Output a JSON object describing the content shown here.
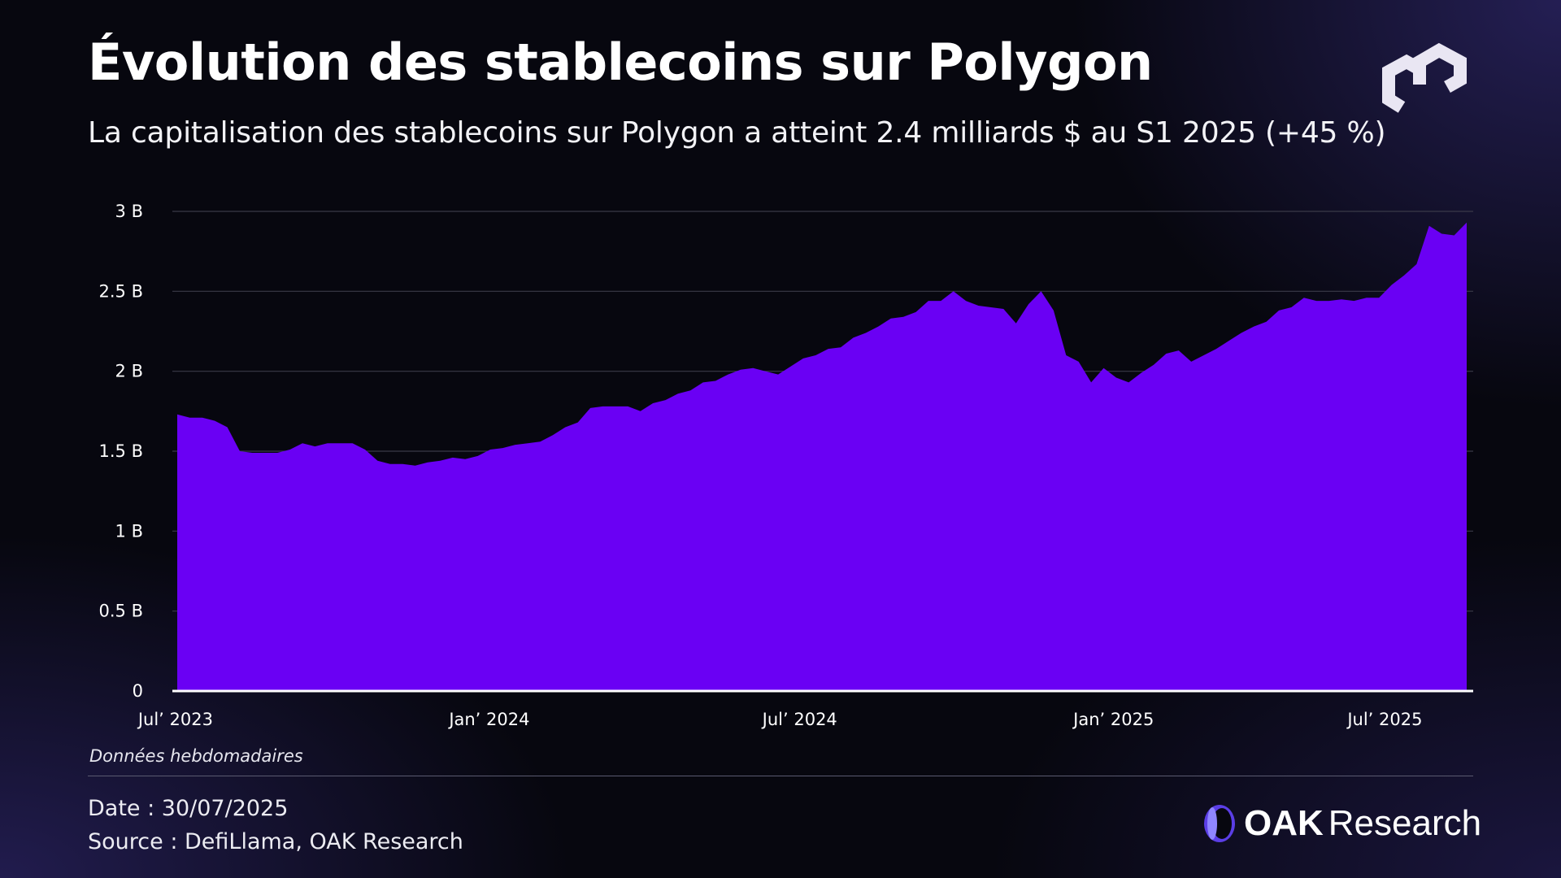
{
  "header": {
    "title": "Évolution des stablecoins sur Polygon",
    "subtitle": "La capitalisation des stablecoins sur Polygon a atteint 2.4 milliards $ au S1 2025 (+45 %)"
  },
  "footer": {
    "frequency_note": "Données hebdomadaires",
    "date": "Date : 30/07/2025",
    "source": "Source : DefiLlama, OAK Research",
    "brand_strong": "OAK",
    "brand_light": "Research"
  },
  "logos": {
    "top_right": "polygon-logo-icon",
    "footer": "oak-research-logo-icon"
  },
  "colors": {
    "area_fill": "#6a00f4",
    "background": "#07070f",
    "gridline": "#3a3a48",
    "baseline": "#ffffff"
  },
  "chart_data": {
    "type": "area",
    "title": "Évolution des stablecoins sur Polygon",
    "subtitle": "La capitalisation des stablecoins sur Polygon a atteint 2.4 milliards $ au S1 2025 (+45 %)",
    "x_unit": "week",
    "x_start": "2023-07-02",
    "x_end": "2025-07-27",
    "xlabel": "",
    "ylabel": "",
    "ylim": [
      0,
      3000000000
    ],
    "y_ticks": [
      {
        "value": 0,
        "label": "0"
      },
      {
        "value": 500000000,
        "label": "0.5 B"
      },
      {
        "value": 1000000000,
        "label": "1 B"
      },
      {
        "value": 1500000000,
        "label": "1.5 B"
      },
      {
        "value": 2000000000,
        "label": "2 B"
      },
      {
        "value": 2500000000,
        "label": "2.5 B"
      },
      {
        "value": 3000000000,
        "label": "3 B"
      }
    ],
    "x_ticks": [
      {
        "date": "2023-07-01",
        "label": "Jul’ 2023"
      },
      {
        "date": "2024-01-01",
        "label": "Jan’ 2024"
      },
      {
        "date": "2024-07-01",
        "label": "Jul’ 2024"
      },
      {
        "date": "2025-01-01",
        "label": "Jan’ 2025"
      },
      {
        "date": "2025-07-01",
        "label": "Jul’ 2025"
      }
    ],
    "grid": "horizontal",
    "legend": "none",
    "series": [
      {
        "values": [
          1.73,
          1.71,
          1.71,
          1.69,
          1.65,
          1.5,
          1.49,
          1.49,
          1.49,
          1.51,
          1.55,
          1.53,
          1.55,
          1.55,
          1.55,
          1.51,
          1.44,
          1.42,
          1.42,
          1.41,
          1.43,
          1.44,
          1.46,
          1.45,
          1.47,
          1.51,
          1.52,
          1.54,
          1.55,
          1.56,
          1.6,
          1.65,
          1.68,
          1.77,
          1.78,
          1.78,
          1.78,
          1.75,
          1.8,
          1.82,
          1.86,
          1.88,
          1.93,
          1.94,
          1.98,
          2.01,
          2.02,
          2.0,
          1.98,
          2.03,
          2.08,
          2.1,
          2.14,
          2.15,
          2.21,
          2.24,
          2.28,
          2.33,
          2.34,
          2.37,
          2.44,
          2.44,
          2.5,
          2.44,
          2.41,
          2.4,
          2.39,
          2.3,
          2.42,
          2.5,
          2.38,
          2.1,
          2.06,
          1.93,
          2.02,
          1.96,
          1.93,
          1.99,
          2.04,
          2.11,
          2.13,
          2.06,
          2.1,
          2.14,
          2.19,
          2.24,
          2.28,
          2.31,
          2.38,
          2.4,
          2.46,
          2.44,
          2.44,
          2.45,
          2.44,
          2.46,
          2.46,
          2.54,
          2.6,
          2.67,
          2.91,
          2.86,
          2.85,
          2.93
        ]
      }
    ]
  }
}
